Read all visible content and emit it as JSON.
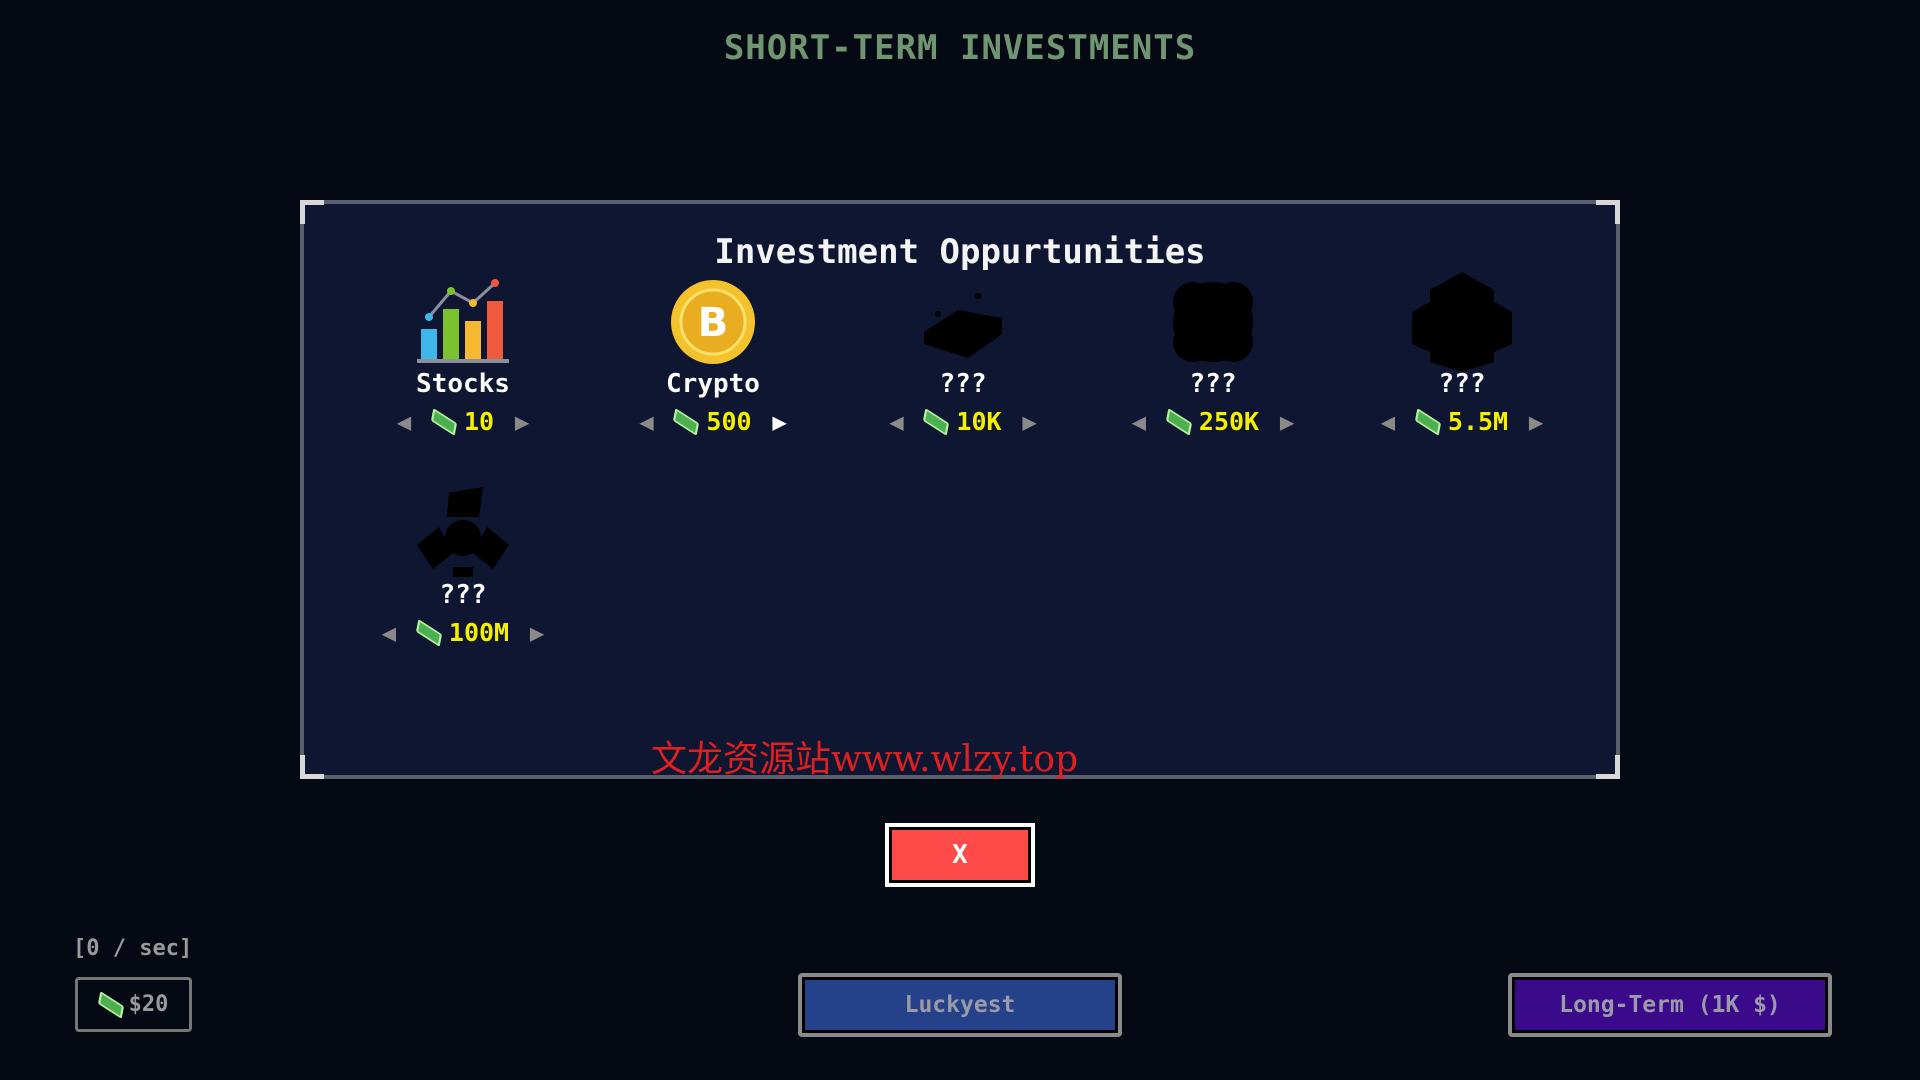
{
  "screen_title": "SHORT-TERM INVESTMENTS",
  "panel": {
    "title": "Investment Oppurtunities",
    "items": [
      {
        "name": "Stocks",
        "price": "10",
        "icon": "bar-chart-icon",
        "unlocked": true
      },
      {
        "name": "Crypto",
        "price": "500",
        "icon": "bitcoin-icon",
        "unlocked": true
      },
      {
        "name": "???",
        "price": "10K",
        "icon": "gold-bar-silhouette-icon",
        "unlocked": false
      },
      {
        "name": "???",
        "price": "250K",
        "icon": "cloud-silhouette-icon",
        "unlocked": false
      },
      {
        "name": "???",
        "price": "5.5M",
        "icon": "box-silhouette-icon",
        "unlocked": false
      },
      {
        "name": "???",
        "price": "100M",
        "icon": "hazard-silhouette-icon",
        "unlocked": false
      }
    ]
  },
  "close_label": "X",
  "rate": "[0 / sec]",
  "money": "$20",
  "luckyest_label": "Luckyest",
  "long_term_label": "Long-Term (1K $)",
  "watermark": "文龙资源站www.wlzy.top",
  "colors": {
    "background": "#050914",
    "panel": "#0e1631",
    "price": "#f4f000",
    "close": "#ff4a4a",
    "luckyest": "#24418a",
    "long_term": "#3a0a8a"
  }
}
